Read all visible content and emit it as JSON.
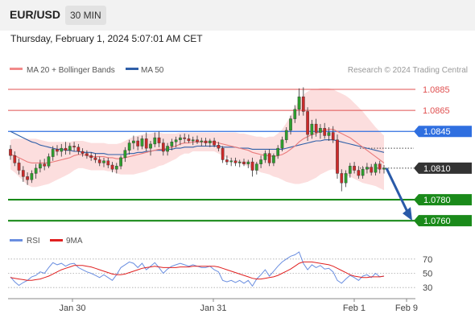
{
  "header": {
    "symbol": "EUR/USD",
    "timeframe": "30 MIN",
    "timestamp": "Thursday, February 1, 2024 5:07:01 AM CET"
  },
  "price_panel": {
    "legend": [
      {
        "label": "MA 20 + Bollinger Bands",
        "color": "#f28a8a"
      },
      {
        "label": "MA 50",
        "color": "#2f5fa8"
      }
    ],
    "credit": "Research © 2024 Trading Central",
    "levels": [
      {
        "value": 1.0885,
        "label": "1.0885",
        "style": "resistance-thin",
        "color": "#e05050"
      },
      {
        "value": 1.0865,
        "label": "1.0865",
        "style": "resistance-thin",
        "color": "#e05050"
      },
      {
        "value": 1.0845,
        "label": "1.0845",
        "style": "pivot",
        "color": "#2f6fe0"
      },
      {
        "value": 1.081,
        "label": "1.0810",
        "style": "last-price",
        "color": "#333333"
      },
      {
        "value": 1.078,
        "label": "1.0780",
        "style": "support-thick",
        "color": "#1a8a1a"
      },
      {
        "value": 1.076,
        "label": "1.0760",
        "style": "support-thick",
        "color": "#1a8a1a"
      }
    ],
    "bullish_color": "#2e9e2e",
    "bearish_color": "#cc2a2a"
  },
  "rsi_panel": {
    "legend": [
      {
        "label": "RSI",
        "color": "#6a8ee0"
      },
      {
        "label": "9MA",
        "color": "#e02020"
      }
    ],
    "ticks": [
      "70",
      "50",
      "30"
    ]
  },
  "x_axis": {
    "ticks": [
      "Jan 30",
      "Jan 31",
      "Feb 1",
      "Feb 9"
    ]
  },
  "chart_data": [
    {
      "type": "candlestick",
      "title": "EUR/USD",
      "timeframe": "30 MIN",
      "ohlc": [
        [
          1.0828,
          1.0832,
          1.0818,
          1.0822
        ],
        [
          1.0822,
          1.0826,
          1.0812,
          1.0815
        ],
        [
          1.0815,
          1.0819,
          1.0804,
          1.0808
        ],
        [
          1.0808,
          1.0812,
          1.0797,
          1.0802
        ],
        [
          1.0802,
          1.0806,
          1.0794,
          1.0799
        ],
        [
          1.0799,
          1.0808,
          1.0796,
          1.0805
        ],
        [
          1.0805,
          1.0814,
          1.08,
          1.081
        ],
        [
          1.081,
          1.0818,
          1.0806,
          1.0814
        ],
        [
          1.0814,
          1.0819,
          1.0808,
          1.0812
        ],
        [
          1.0812,
          1.0824,
          1.081,
          1.0821
        ],
        [
          1.0821,
          1.0831,
          1.0817,
          1.0828
        ],
        [
          1.0828,
          1.0832,
          1.0822,
          1.0826
        ],
        [
          1.0826,
          1.0833,
          1.0821,
          1.0829
        ],
        [
          1.0829,
          1.0835,
          1.0823,
          1.0827
        ],
        [
          1.0827,
          1.0834,
          1.0823,
          1.0831
        ],
        [
          1.0831,
          1.0835,
          1.0826,
          1.083
        ],
        [
          1.083,
          1.0833,
          1.0823,
          1.0826
        ],
        [
          1.0826,
          1.0829,
          1.0821,
          1.0824
        ],
        [
          1.0824,
          1.0827,
          1.0819,
          1.0822
        ],
        [
          1.0822,
          1.0825,
          1.0817,
          1.082
        ],
        [
          1.082,
          1.0824,
          1.0815,
          1.0818
        ],
        [
          1.0818,
          1.0821,
          1.0812,
          1.0815
        ],
        [
          1.0815,
          1.082,
          1.0811,
          1.0817
        ],
        [
          1.0817,
          1.082,
          1.081,
          1.0813
        ],
        [
          1.0813,
          1.0816,
          1.0806,
          1.0809
        ],
        [
          1.0809,
          1.0815,
          1.0805,
          1.0812
        ],
        [
          1.0812,
          1.0822,
          1.0809,
          1.082
        ],
        [
          1.082,
          1.083,
          1.0816,
          1.0827
        ],
        [
          1.0827,
          1.0837,
          1.0823,
          1.0834
        ],
        [
          1.0834,
          1.0841,
          1.0828,
          1.0836
        ],
        [
          1.0836,
          1.084,
          1.0827,
          1.0831
        ],
        [
          1.0831,
          1.0841,
          1.0828,
          1.0838
        ],
        [
          1.0838,
          1.0844,
          1.0826,
          1.0829
        ],
        [
          1.0829,
          1.0836,
          1.0822,
          1.0833
        ],
        [
          1.0833,
          1.0844,
          1.083,
          1.0839
        ],
        [
          1.0839,
          1.0845,
          1.083,
          1.0834
        ],
        [
          1.0834,
          1.0838,
          1.0822,
          1.0826
        ],
        [
          1.0826,
          1.0834,
          1.0822,
          1.0831
        ],
        [
          1.0831,
          1.0838,
          1.0827,
          1.0835
        ],
        [
          1.0835,
          1.084,
          1.083,
          1.0837
        ],
        [
          1.0837,
          1.0842,
          1.0832,
          1.0839
        ],
        [
          1.0839,
          1.0843,
          1.0834,
          1.0838
        ],
        [
          1.0838,
          1.0842,
          1.0834,
          1.0836
        ],
        [
          1.0836,
          1.084,
          1.0832,
          1.0837
        ],
        [
          1.0837,
          1.0841,
          1.0833,
          1.0835
        ],
        [
          1.0835,
          1.0839,
          1.0831,
          1.0836
        ],
        [
          1.0836,
          1.0839,
          1.0831,
          1.0834
        ],
        [
          1.0834,
          1.0838,
          1.083,
          1.0836
        ],
        [
          1.0836,
          1.0839,
          1.083,
          1.0832
        ],
        [
          1.0832,
          1.0835,
          1.0826,
          1.0829
        ],
        [
          1.0829,
          1.0831,
          1.0815,
          1.0818
        ],
        [
          1.0818,
          1.0822,
          1.0813,
          1.0816
        ],
        [
          1.0816,
          1.082,
          1.0812,
          1.0817
        ],
        [
          1.0817,
          1.082,
          1.0812,
          1.0815
        ],
        [
          1.0815,
          1.0818,
          1.0811,
          1.0816
        ],
        [
          1.0816,
          1.0819,
          1.0812,
          1.0814
        ],
        [
          1.0814,
          1.0818,
          1.081,
          1.0816
        ],
        [
          1.0816,
          1.082,
          1.0802,
          1.0808
        ],
        [
          1.0808,
          1.0816,
          1.0804,
          1.0814
        ],
        [
          1.0814,
          1.0822,
          1.081,
          1.0818
        ],
        [
          1.0818,
          1.0827,
          1.0815,
          1.0824
        ],
        [
          1.0824,
          1.0828,
          1.0812,
          1.0815
        ],
        [
          1.0815,
          1.0824,
          1.0812,
          1.0822
        ],
        [
          1.0822,
          1.0832,
          1.0819,
          1.0829
        ],
        [
          1.0829,
          1.084,
          1.0826,
          1.0837
        ],
        [
          1.0837,
          1.0849,
          1.0834,
          1.0846
        ],
        [
          1.0846,
          1.086,
          1.0842,
          1.0857
        ],
        [
          1.0857,
          1.087,
          1.0853,
          1.0866
        ],
        [
          1.0866,
          1.0886,
          1.086,
          1.0878
        ],
        [
          1.0878,
          1.0887,
          1.086,
          1.0864
        ],
        [
          1.0864,
          1.0868,
          1.0836,
          1.0842
        ],
        [
          1.0842,
          1.0856,
          1.0838,
          1.0852
        ],
        [
          1.0852,
          1.0857,
          1.084,
          1.0844
        ],
        [
          1.0844,
          1.0852,
          1.0838,
          1.0848
        ],
        [
          1.0848,
          1.0853,
          1.0838,
          1.0841
        ],
        [
          1.0841,
          1.0849,
          1.0836,
          1.0844
        ],
        [
          1.0844,
          1.085,
          1.0834,
          1.0837
        ],
        [
          1.0837,
          1.0842,
          1.08,
          1.0805
        ],
        [
          1.0805,
          1.0809,
          1.0788,
          1.0796
        ],
        [
          1.0796,
          1.0808,
          1.0792,
          1.0805
        ],
        [
          1.0805,
          1.0815,
          1.0801,
          1.0812
        ],
        [
          1.0812,
          1.0816,
          1.0805,
          1.0808
        ],
        [
          1.0808,
          1.0812,
          1.08,
          1.0803
        ],
        [
          1.0803,
          1.0812,
          1.08,
          1.0809
        ],
        [
          1.0809,
          1.0815,
          1.0805,
          1.0811
        ],
        [
          1.0811,
          1.0814,
          1.0803,
          1.0806
        ],
        [
          1.0806,
          1.0816,
          1.0803,
          1.0814
        ],
        [
          1.0814,
          1.0817,
          1.0805,
          1.0809
        ],
        [
          1.0809,
          1.0813,
          1.0805,
          1.081
        ]
      ],
      "ma20": [
        1.0823,
        1.0822,
        1.082,
        1.0818,
        1.0816,
        1.0815,
        1.0815,
        1.0815,
        1.0815,
        1.0815,
        1.0816,
        1.0817,
        1.0818,
        1.0819,
        1.082,
        1.0822,
        1.0823,
        1.0823,
        1.0822,
        1.0821,
        1.0821,
        1.0821,
        1.0821,
        1.082,
        1.082,
        1.0819,
        1.0819,
        1.082,
        1.0821,
        1.0822,
        1.0823,
        1.0824,
        1.0825,
        1.0826,
        1.0827,
        1.0828,
        1.0828,
        1.0829,
        1.083,
        1.0831,
        1.0833,
        1.0834,
        1.0834,
        1.0835,
        1.0835,
        1.0835,
        1.0835,
        1.0835,
        1.0835,
        1.0834,
        1.0833,
        1.0832,
        1.0831,
        1.083,
        1.0829,
        1.0828,
        1.0827,
        1.0825,
        1.0824,
        1.0823,
        1.0822,
        1.0822,
        1.0821,
        1.0822,
        1.0823,
        1.0825,
        1.0828,
        1.0831,
        1.0835,
        1.0838,
        1.084,
        1.0842,
        1.0843,
        1.0845,
        1.0846,
        1.0847,
        1.0847,
        1.0845,
        1.0843,
        1.0841,
        1.0839,
        1.0836,
        1.0833,
        1.083,
        1.0827,
        1.0824,
        1.0821,
        1.0818,
        1.0815
      ],
      "ma50": [
        1.0845,
        1.0843,
        1.0841,
        1.0839,
        1.0837,
        1.0835,
        1.0834,
        1.0832,
        1.0831,
        1.083,
        1.0829,
        1.0828,
        1.0828,
        1.0827,
        1.0827,
        1.0826,
        1.0826,
        1.0825,
        1.0825,
        1.0825,
        1.0824,
        1.0824,
        1.0824,
        1.0823,
        1.0823,
        1.0823,
        1.0823,
        1.0823,
        1.0824,
        1.0824,
        1.0825,
        1.0825,
        1.0826,
        1.0826,
        1.0827,
        1.0827,
        1.0827,
        1.0828,
        1.0828,
        1.0829,
        1.0829,
        1.083,
        1.083,
        1.083,
        1.0831,
        1.0831,
        1.0831,
        1.0831,
        1.0831,
        1.0831,
        1.083,
        1.083,
        1.083,
        1.083,
        1.0829,
        1.0829,
        1.0829,
        1.0828,
        1.0828,
        1.0828,
        1.0828,
        1.0828,
        1.0828,
        1.0828,
        1.0828,
        1.0829,
        1.083,
        1.0831,
        1.0832,
        1.0833,
        1.0834,
        1.0835,
        1.0836,
        1.0836,
        1.0837,
        1.0837,
        1.0837,
        1.0836,
        1.0835,
        1.0834,
        1.0833,
        1.0832,
        1.0831,
        1.083,
        1.0829,
        1.0828,
        1.0827,
        1.0826,
        1.0825
      ],
      "bb_width": [
        0.0014,
        0.0016,
        0.0018,
        0.002,
        0.0022,
        0.0023,
        0.0023,
        0.0022,
        0.0021,
        0.002,
        0.0019,
        0.0018,
        0.0017,
        0.0016,
        0.0015,
        0.0014,
        0.0013,
        0.0013,
        0.0013,
        0.0013,
        0.0013,
        0.0013,
        0.0013,
        0.0013,
        0.0013,
        0.0014,
        0.0015,
        0.0016,
        0.0017,
        0.0018,
        0.0018,
        0.0018,
        0.0018,
        0.0017,
        0.0017,
        0.0016,
        0.0015,
        0.0014,
        0.0013,
        0.0012,
        0.0011,
        0.001,
        0.001,
        0.0009,
        0.0009,
        0.0009,
        0.0009,
        0.0009,
        0.0009,
        0.001,
        0.0011,
        0.0012,
        0.0013,
        0.0014,
        0.0014,
        0.0015,
        0.0015,
        0.0016,
        0.0016,
        0.0017,
        0.0017,
        0.0018,
        0.0019,
        0.0021,
        0.0024,
        0.0028,
        0.0032,
        0.0036,
        0.004,
        0.0042,
        0.0043,
        0.0043,
        0.0042,
        0.0041,
        0.004,
        0.0039,
        0.0038,
        0.0038,
        0.0038,
        0.0038,
        0.0037,
        0.0036,
        0.0035,
        0.0034,
        0.0032,
        0.003,
        0.0028,
        0.0027,
        0.0026
      ],
      "projection": {
        "from": 1.081,
        "to": 1.076
      },
      "levels": [
        1.0885,
        1.0865,
        1.0845,
        1.081,
        1.078,
        1.076
      ],
      "ylim": [
        1.0754,
        1.0895
      ],
      "x_ticks": [
        "Jan 30",
        "Jan 31",
        "Feb 1",
        "Feb 9"
      ]
    },
    {
      "type": "line",
      "title": "RSI",
      "series": [
        {
          "name": "RSI",
          "values": [
            45,
            38,
            33,
            37,
            40,
            45,
            47,
            52,
            50,
            58,
            65,
            62,
            64,
            60,
            63,
            64,
            58,
            55,
            52,
            50,
            47,
            44,
            48,
            44,
            40,
            48,
            58,
            62,
            66,
            64,
            58,
            64,
            55,
            60,
            65,
            58,
            50,
            56,
            60,
            62,
            64,
            62,
            60,
            62,
            60,
            58,
            58,
            60,
            55,
            52,
            40,
            38,
            40,
            37,
            40,
            36,
            40,
            32,
            42,
            48,
            55,
            46,
            53,
            60,
            66,
            70,
            74,
            76,
            80,
            64,
            55,
            62,
            58,
            61,
            56,
            57,
            52,
            40,
            36,
            42,
            47,
            44,
            40,
            46,
            48,
            44,
            50,
            45,
            46
          ]
        },
        {
          "name": "9MA",
          "values": [
            44,
            43,
            42,
            41,
            40,
            40,
            41,
            42,
            44,
            46,
            49,
            52,
            55,
            57,
            59,
            61,
            61,
            61,
            60,
            59,
            57,
            55,
            53,
            51,
            49,
            48,
            48,
            49,
            51,
            53,
            55,
            57,
            58,
            59,
            60,
            59,
            58,
            58,
            58,
            58,
            59,
            59,
            59,
            60,
            60,
            60,
            60,
            60,
            60,
            59,
            57,
            55,
            53,
            51,
            49,
            47,
            45,
            43,
            42,
            42,
            43,
            44,
            45,
            47,
            50,
            53,
            56,
            60,
            64,
            66,
            66,
            66,
            65,
            64,
            63,
            62,
            60,
            57,
            54,
            51,
            48,
            46,
            45,
            44,
            44,
            45,
            45,
            45,
            46
          ]
        }
      ],
      "ylim": [
        20,
        80
      ],
      "y_ticks": [
        70,
        50,
        30
      ]
    }
  ]
}
